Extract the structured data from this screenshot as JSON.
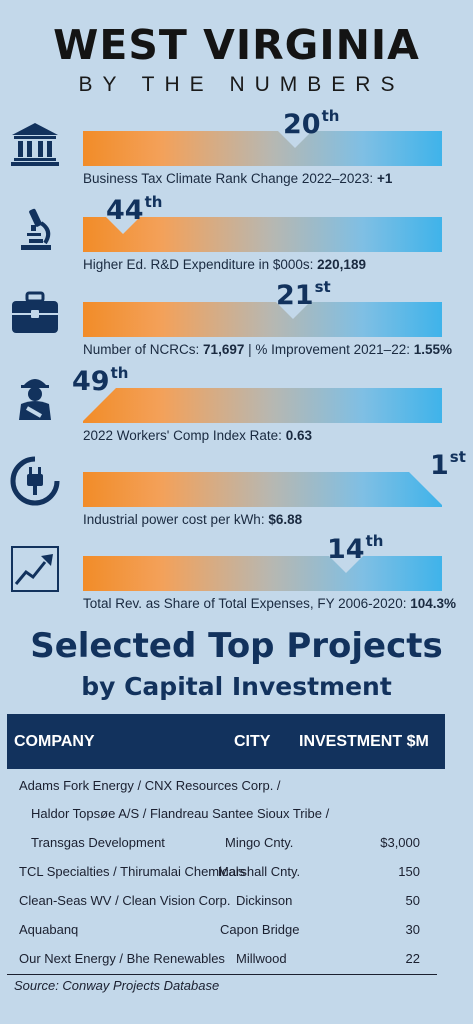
{
  "header": {
    "title": "WEST VIRGINIA",
    "subtitle": "BY THE NUMBERS"
  },
  "stats": [
    {
      "icon": "bank-icon",
      "rank": "20",
      "suffix": "th",
      "label": "Business Tax Climate Rank Change 2022–2023:",
      "value": "+1"
    },
    {
      "icon": "microscope-icon",
      "rank": "44",
      "suffix": "th",
      "label": "Higher Ed. R&D Expenditure in $000s:",
      "value": "220,189"
    },
    {
      "icon": "briefcase-icon",
      "rank": "21",
      "suffix": "st",
      "label": "Number of NCRCs:",
      "value": "71,697",
      "label2": "| % Improvement 2021–22:",
      "value2": "1.55%"
    },
    {
      "icon": "injured-worker-icon",
      "rank": "49",
      "suffix": "th",
      "label": "2022 Workers' Comp Index Rate:",
      "value": "0.63"
    },
    {
      "icon": "power-plug-icon",
      "rank": "1",
      "suffix": "st",
      "label": "Industrial power cost per kWh:",
      "value": "$6.88"
    },
    {
      "icon": "line-chart-icon",
      "rank": "14",
      "suffix": "th",
      "label": "Total Rev. as Share of Total Expenses, FY 2006-2020:",
      "value": "104.3%"
    }
  ],
  "projects": {
    "title_line1": "Selected Top Projects",
    "title_line2": "by Capital Investment",
    "columns": {
      "company": "COMPANY",
      "city": "CITY",
      "investment": "INVESTMENT $M"
    },
    "rows": [
      {
        "company": "Adams Fork Energy / CNX Resources Corp. /",
        "city": "",
        "investment": ""
      },
      {
        "company": "Haldor Topsøe A/S / Flandreau Santee Sioux Tribe /",
        "city": "",
        "investment": ""
      },
      {
        "company": "Transgas Development",
        "city": "Mingo Cnty.",
        "investment": "$3,000"
      },
      {
        "company": "TCL Specialties  / Thirumalai Chemicals",
        "city": "Marshall Cnty.",
        "investment": "150"
      },
      {
        "company": "Clean-Seas WV / Clean Vision Corp.",
        "city": "Dickinson",
        "investment": "50"
      },
      {
        "company": "Aquabanq",
        "city": "Capon Bridge",
        "investment": "30"
      },
      {
        "company": "Our Next Energy / Bhe Renewables",
        "city": "Millwood",
        "investment": "22"
      }
    ],
    "source": "Source: Conway Projects Database"
  },
  "colors": {
    "background": "#c3d8ea",
    "navy": "#12325d",
    "orange": "#f28c28",
    "blue": "#3fb3ea"
  }
}
